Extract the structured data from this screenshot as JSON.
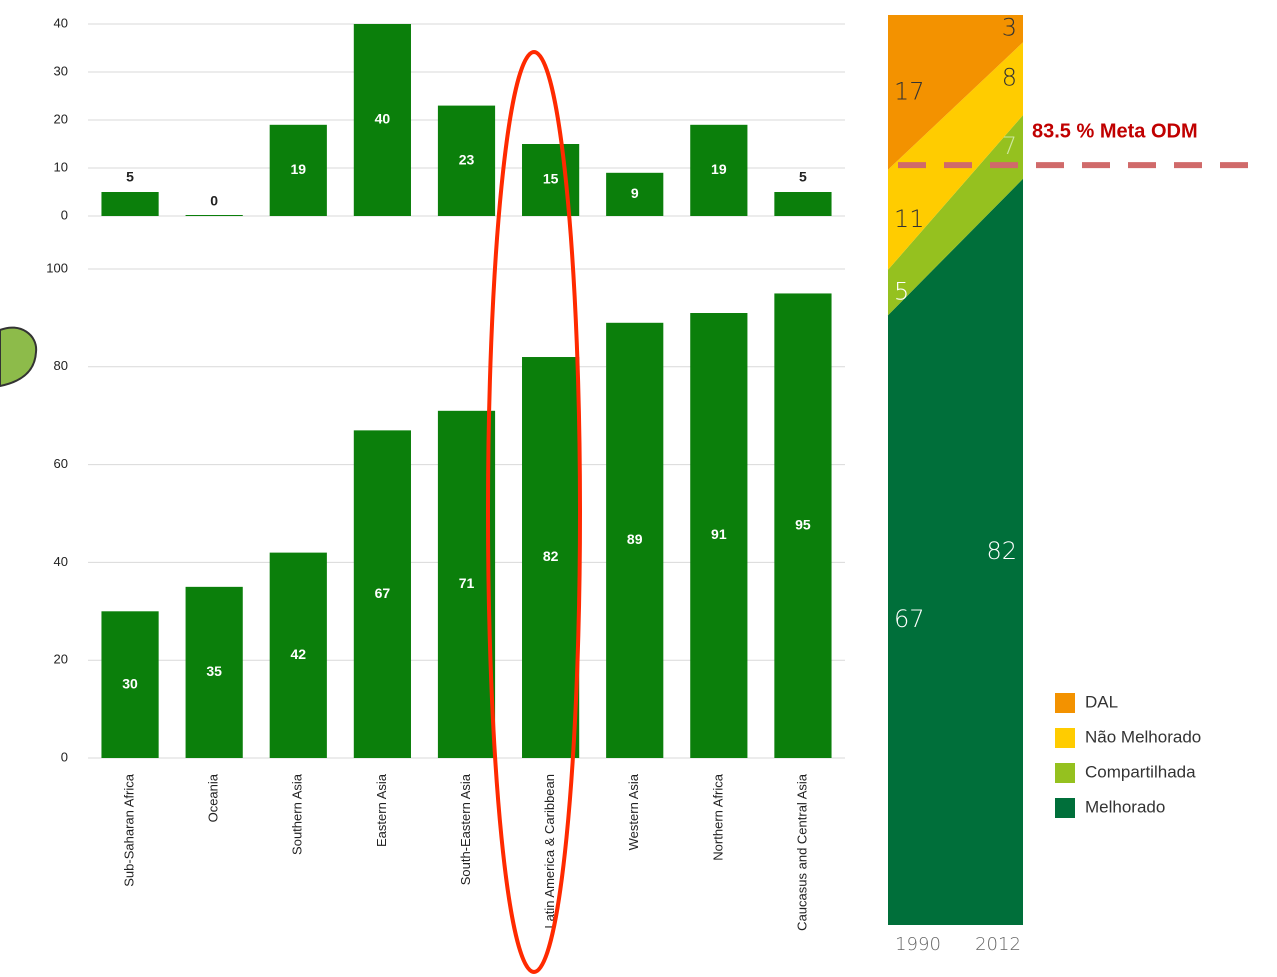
{
  "chart_data": [
    {
      "type": "bar",
      "values": [
        5,
        0,
        19,
        40,
        23,
        15,
        9,
        19,
        5
      ],
      "color": "#0b7f0b",
      "ylim": [
        0,
        40
      ],
      "yticks": [
        0,
        10,
        20,
        30,
        40
      ],
      "grid": true
    },
    {
      "type": "bar",
      "categories": [
        "Sub-Saharan Africa",
        "Oceania",
        "Southern Asia",
        "Eastern Asia",
        "South-Eastern Asia",
        "Latin America & Caribbean",
        "Western Asia",
        "Northern Africa",
        "Caucasus and Central Asia"
      ],
      "values": [
        30,
        35,
        42,
        67,
        71,
        82,
        89,
        91,
        95
      ],
      "color": "#0b7f0b",
      "ylim": [
        0,
        100
      ],
      "yticks": [
        0,
        20,
        40,
        60,
        80,
        100
      ],
      "grid": true
    },
    {
      "type": "area",
      "stacked": true,
      "x": [
        "1990",
        "2012"
      ],
      "series": [
        {
          "name": "DAL",
          "color": "#f39200",
          "values": [
            17,
            3
          ]
        },
        {
          "name": "Não Melhorado",
          "color": "#ffcc00",
          "values": [
            11,
            8
          ]
        },
        {
          "name": "Compartilhada",
          "color": "#95c11f",
          "values": [
            5,
            7
          ]
        },
        {
          "name": "Melhorado",
          "color": "#006f3a",
          "values": [
            67,
            82
          ]
        }
      ],
      "ylim": [
        0,
        100
      ],
      "annotation": {
        "text": "83.5 % Meta ODM",
        "value": 83.5,
        "color": "#c00000"
      },
      "legend": "lower right"
    }
  ]
}
